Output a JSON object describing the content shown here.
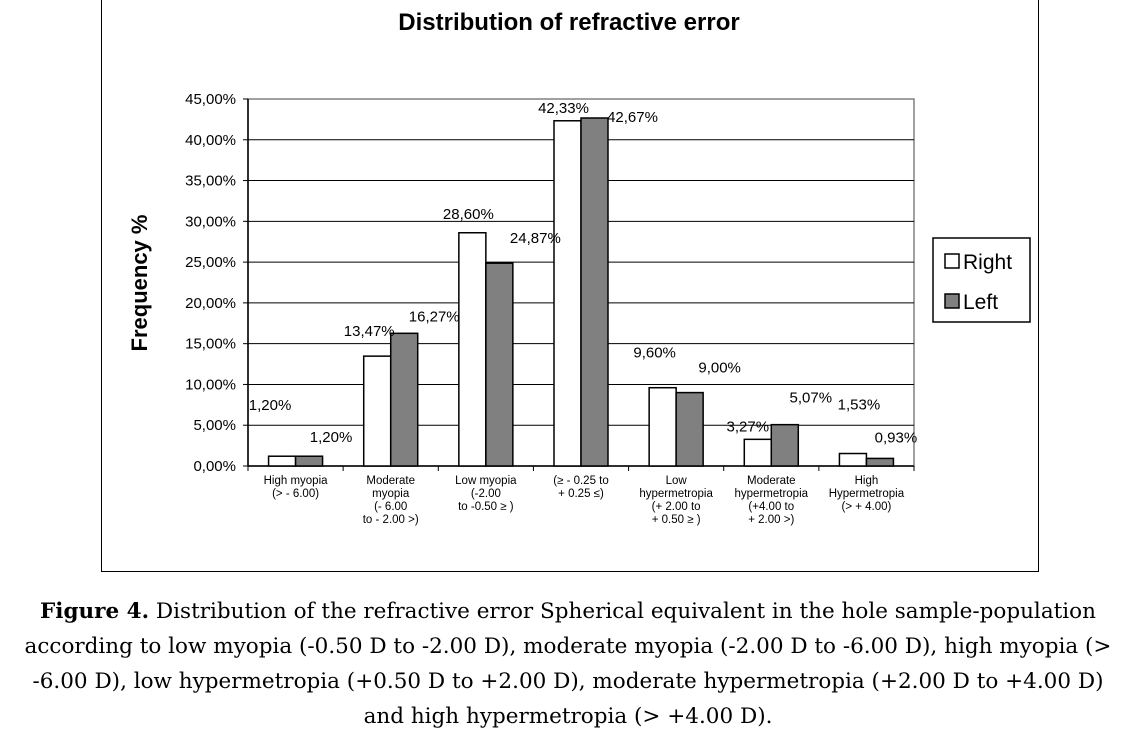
{
  "chart_data": {
    "type": "bar",
    "title": "Distribution of refractive error",
    "ylabel": "Frequency %",
    "xlabel": "",
    "ylim": [
      0,
      45
    ],
    "yticks": [
      "0,00%",
      "5,00%",
      "10,00%",
      "15,00%",
      "20,00%",
      "25,00%",
      "30,00%",
      "35,00%",
      "40,00%",
      "45,00%"
    ],
    "grid": true,
    "legend_position": "right",
    "categories": [
      [
        "High myopia",
        "(> - 6.00)"
      ],
      [
        "Moderate",
        "myopia",
        "(- 6.00",
        "to - 2.00 >)"
      ],
      [
        "Low myopia",
        "(-2.00",
        "to  -0.50 ≥ )"
      ],
      [
        "(≥ - 0.25 to",
        "+ 0.25 ≤)"
      ],
      [
        "Low",
        "hypermetropia",
        "(+ 2.00 to",
        "+ 0.50 ≥ )"
      ],
      [
        "Moderate",
        "hypermetropia",
        "(+4.00 to",
        "+ 2.00 >)"
      ],
      [
        "High",
        "Hypermetropia",
        "(> + 4.00)"
      ]
    ],
    "series": [
      {
        "name": "Right",
        "color": "#ffffff",
        "values": [
          1.2,
          13.47,
          28.6,
          42.33,
          9.6,
          3.27,
          1.53
        ],
        "labels": [
          "1,20%",
          "13,47%",
          "28,60%",
          "42,33%",
          "9,60%",
          "3,27%",
          "1,53%"
        ]
      },
      {
        "name": "Left",
        "color": "#808080",
        "values": [
          1.2,
          16.27,
          24.87,
          42.67,
          9.0,
          5.07,
          0.93
        ],
        "labels": [
          "1,20%",
          "16,27%",
          "24,87%",
          "42,67%",
          "9,00%",
          "5,07%",
          "0,93%"
        ]
      }
    ]
  },
  "caption": {
    "label": "Figure 4.",
    "text": "Distribution of the refractive error Spherical equivalent in the hole sample-population according to low myopia (-0.50 D to -2.00 D), moderate myopia (-2.00 D to -6.00 D), high myopia (> -6.00 D), low hypermetropia (+0.50 D to +2.00 D), moderate hypermetropia (+2.00 D to +4.00 D) and high hypermetropia (> +4.00 D)."
  }
}
